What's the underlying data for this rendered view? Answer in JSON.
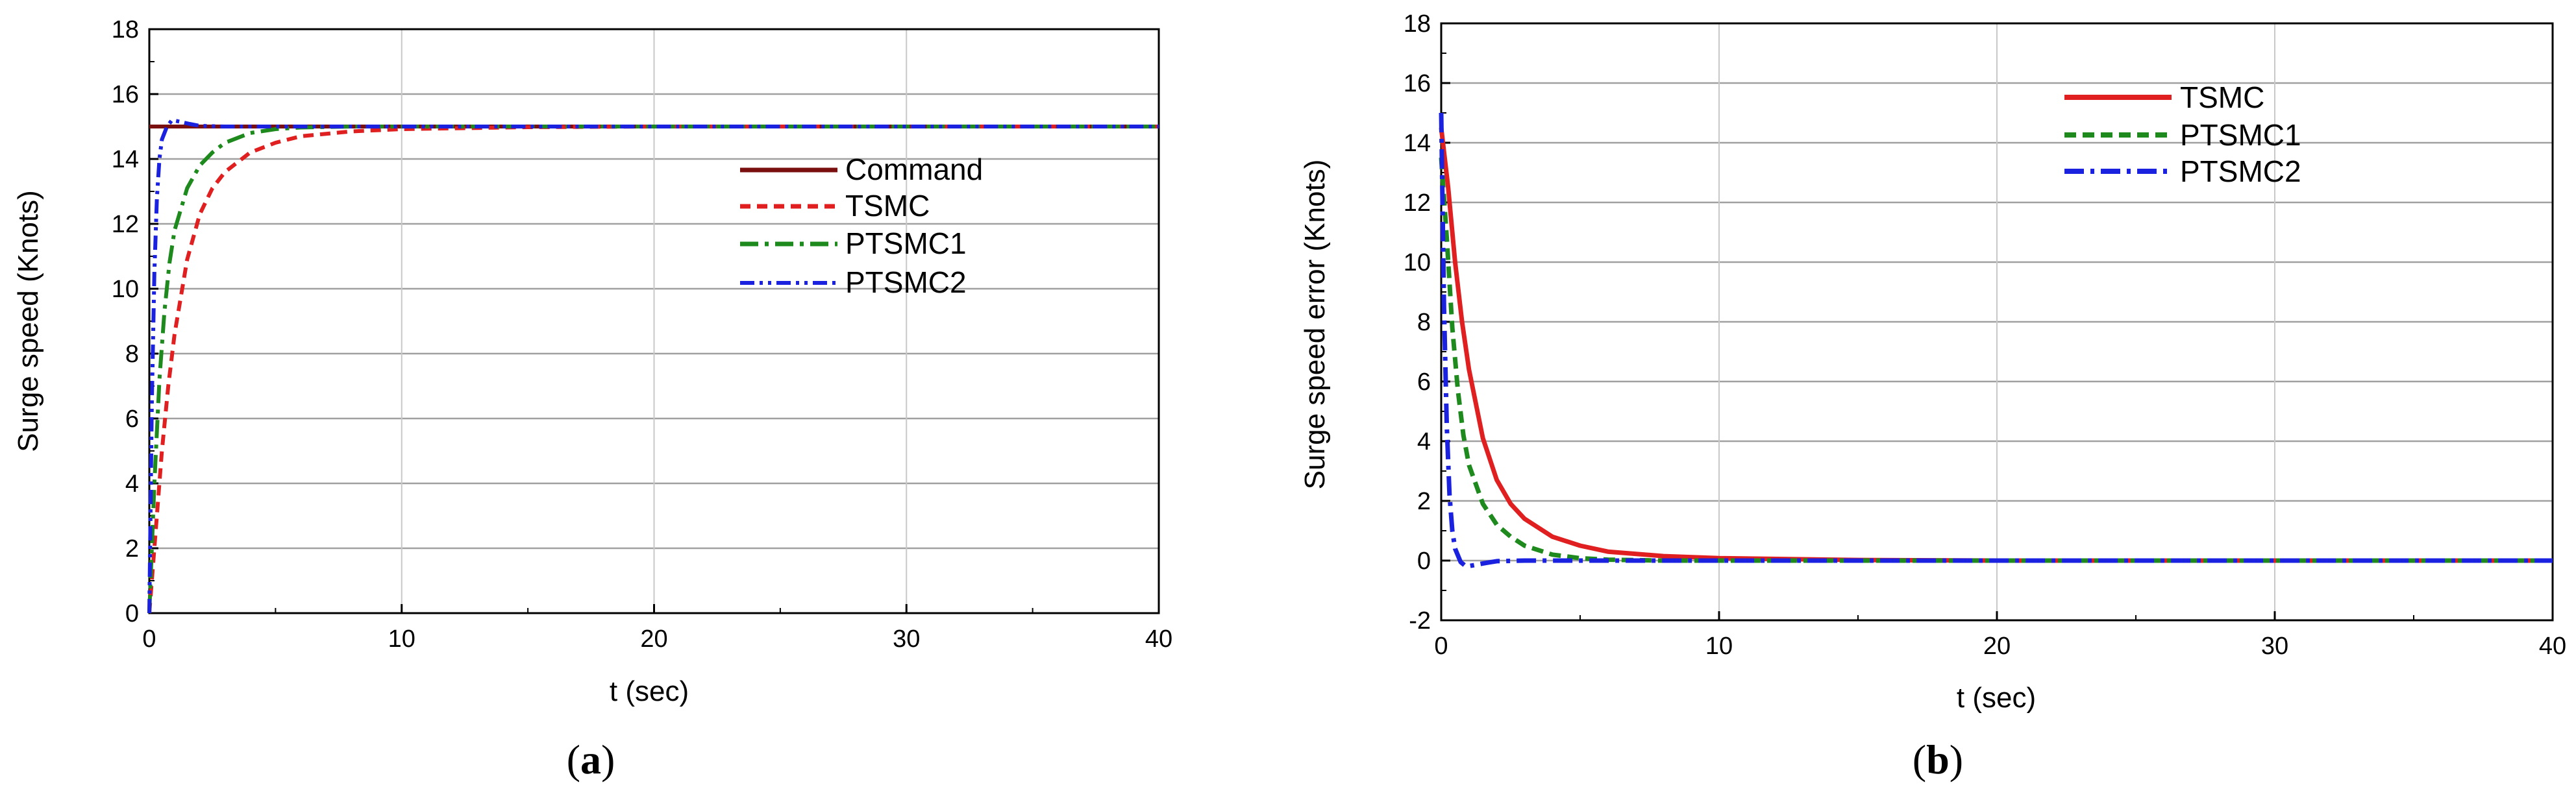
{
  "chart_data": [
    {
      "type": "line",
      "panel_label": "a",
      "xlabel": "t (sec)",
      "ylabel": "Surge speed (Knots)",
      "xlim": [
        0,
        40
      ],
      "ylim": [
        0,
        18
      ],
      "xticks": [
        0,
        10,
        20,
        30,
        40
      ],
      "yticks": [
        0,
        2,
        4,
        6,
        8,
        10,
        12,
        14,
        16,
        18
      ],
      "grid": true,
      "legend_position": "center-right",
      "series": [
        {
          "name": "Command",
          "color": "#7a0f0f",
          "dash": "solid",
          "x": [
            0,
            40
          ],
          "y": [
            15,
            15
          ]
        },
        {
          "name": "TSMC",
          "color": "#e02020",
          "dash": "dash",
          "x": [
            0,
            0.25,
            0.5,
            0.75,
            1,
            1.5,
            2,
            2.5,
            3,
            4,
            5,
            6,
            8,
            10,
            15,
            20,
            30,
            40
          ],
          "y": [
            0,
            2.5,
            5.0,
            7.0,
            8.6,
            10.9,
            12.3,
            13.1,
            13.6,
            14.2,
            14.5,
            14.7,
            14.85,
            14.92,
            14.98,
            15,
            15,
            15
          ]
        },
        {
          "name": "PTSMC1",
          "color": "#1e8a1e",
          "dash": "dashdot",
          "x": [
            0,
            0.2,
            0.4,
            0.6,
            0.8,
            1,
            1.5,
            2,
            2.5,
            3,
            4,
            5,
            6,
            8,
            10,
            20,
            40
          ],
          "y": [
            0,
            4.0,
            7.2,
            9.3,
            10.8,
            11.8,
            13.1,
            13.8,
            14.2,
            14.5,
            14.8,
            14.92,
            14.97,
            15,
            15,
            15,
            15
          ]
        },
        {
          "name": "PTSMC2",
          "color": "#1a22e0",
          "dash": "dashdotdot",
          "x": [
            0,
            0.1,
            0.2,
            0.3,
            0.4,
            0.5,
            0.7,
            0.9,
            1.2,
            1.6,
            2,
            3,
            5,
            10,
            40
          ],
          "y": [
            0,
            6.5,
            10.5,
            12.8,
            14.0,
            14.6,
            15.0,
            15.2,
            15.15,
            15.08,
            15.02,
            15.0,
            15.0,
            15,
            15
          ]
        }
      ]
    },
    {
      "type": "line",
      "panel_label": "b",
      "xlabel": "t (sec)",
      "ylabel": "Surge speed error (Knots)",
      "xlim": [
        0,
        40
      ],
      "ylim": [
        -2,
        18
      ],
      "xticks": [
        0,
        10,
        20,
        30,
        40
      ],
      "yticks": [
        -2,
        0,
        2,
        4,
        6,
        8,
        10,
        12,
        14,
        16,
        18
      ],
      "grid": true,
      "legend_position": "top-right",
      "series": [
        {
          "name": "TSMC",
          "color": "#e02020",
          "dash": "solid",
          "x": [
            0,
            0.25,
            0.5,
            0.75,
            1,
            1.5,
            2,
            2.5,
            3,
            4,
            5,
            6,
            8,
            10,
            15,
            20,
            30,
            40
          ],
          "y": [
            14.5,
            12.5,
            10.0,
            8.0,
            6.4,
            4.1,
            2.7,
            1.9,
            1.4,
            0.8,
            0.5,
            0.3,
            0.15,
            0.08,
            0.02,
            0,
            0,
            0
          ]
        },
        {
          "name": "PTSMC1",
          "color": "#1e8a1e",
          "dash": "dash",
          "x": [
            0,
            0.2,
            0.4,
            0.6,
            0.8,
            1,
            1.5,
            2,
            2.5,
            3,
            4,
            5,
            6,
            8,
            10,
            20,
            40
          ],
          "y": [
            13.5,
            10.8,
            7.8,
            5.7,
            4.2,
            3.2,
            1.9,
            1.2,
            0.8,
            0.5,
            0.2,
            0.08,
            0.03,
            0,
            0,
            0,
            0
          ]
        },
        {
          "name": "PTSMC2",
          "color": "#1a22e0",
          "dash": "dashdot",
          "x": [
            0,
            0.1,
            0.2,
            0.3,
            0.4,
            0.5,
            0.7,
            0.9,
            1.2,
            1.6,
            2,
            3,
            5,
            10,
            40
          ],
          "y": [
            15.0,
            8.5,
            4.5,
            2.2,
            1.0,
            0.4,
            -0.05,
            -0.2,
            -0.15,
            -0.08,
            -0.02,
            0,
            0,
            0,
            0
          ]
        }
      ]
    }
  ]
}
